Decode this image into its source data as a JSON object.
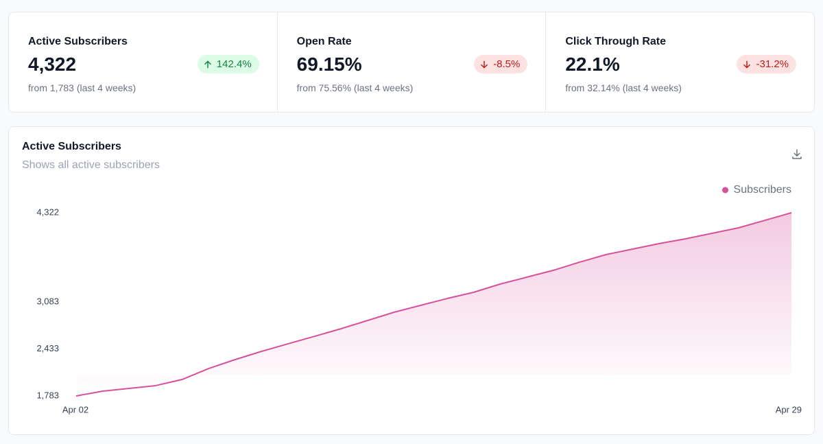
{
  "cards": [
    {
      "title": "Active Subscribers",
      "value": "4,322",
      "change": "142.4%",
      "trend": "up",
      "from": "from 1,783 (last 4 weeks)"
    },
    {
      "title": "Open Rate",
      "value": "69.15%",
      "change": "-8.5%",
      "trend": "down",
      "from": "from 75.56% (last 4 weeks)"
    },
    {
      "title": "Click Through Rate",
      "value": "22.1%",
      "change": "-31.2%",
      "trend": "down",
      "from": "from 32.14% (last 4 weeks)"
    }
  ],
  "chart_data": {
    "type": "area",
    "title": "Active Subscribers",
    "subtitle": "Shows all active subscribers",
    "categories": [
      "Apr 02",
      null,
      null,
      null,
      null,
      null,
      null,
      null,
      null,
      null,
      null,
      null,
      null,
      null,
      null,
      null,
      null,
      null,
      null,
      null,
      null,
      null,
      null,
      null,
      null,
      null,
      null,
      "Apr 29"
    ],
    "series": [
      {
        "name": "Subscribers",
        "color": "#d6509a",
        "values": [
          1783,
          1850,
          1888,
          1926,
          2011,
          2163,
          2287,
          2401,
          2506,
          2610,
          2715,
          2829,
          2943,
          3038,
          3133,
          3219,
          3333,
          3428,
          3523,
          3637,
          3742,
          3818,
          3894,
          3961,
          4037,
          4113,
          4217,
          4322
        ]
      }
    ],
    "ylim": [
      1783,
      4322
    ],
    "yticks": [
      {
        "value": 1783,
        "label": "1,783"
      },
      {
        "value": 2433,
        "label": "2,433"
      },
      {
        "value": 3083,
        "label": "3,083"
      },
      {
        "value": 4322,
        "label": "4,322"
      }
    ],
    "grid": false,
    "legend": "top-right"
  }
}
